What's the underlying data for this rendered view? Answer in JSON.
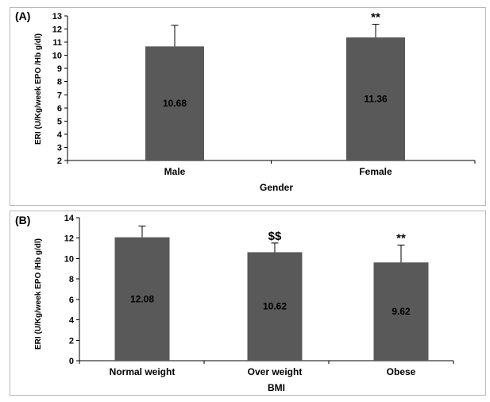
{
  "chart_data": [
    {
      "type": "bar",
      "panel_label": "(A)",
      "categories": [
        "Male",
        "Female"
      ],
      "values": [
        10.68,
        11.36
      ],
      "error": [
        1.6,
        1.0
      ],
      "data_labels": [
        "10.68",
        "11.36"
      ],
      "significance": [
        "",
        "**"
      ],
      "xlabel": "Gender",
      "ylabel": "ERI (U/Kg/week EPO /Hb g/dl)",
      "ylim": [
        2,
        13
      ],
      "yticks": [
        2,
        3,
        4,
        5,
        6,
        7,
        8,
        9,
        10,
        11,
        12,
        13
      ],
      "grid": false,
      "legend": "none",
      "bar_color": "#595959"
    },
    {
      "type": "bar",
      "panel_label": "(B)",
      "categories": [
        "Normal weight",
        "Over weight",
        "Obese"
      ],
      "values": [
        12.08,
        10.62,
        9.62
      ],
      "error": [
        1.1,
        0.9,
        1.7
      ],
      "data_labels": [
        "12.08",
        "10.62",
        "9.62"
      ],
      "significance": [
        "",
        "$$",
        "**"
      ],
      "xlabel": "BMI",
      "ylabel": "ERI (U/Kg/week EPO /Hb g/dl)",
      "ylim": [
        0,
        14
      ],
      "yticks": [
        0,
        2,
        4,
        6,
        8,
        10,
        12,
        14
      ],
      "grid": false,
      "legend": "none",
      "bar_color": "#595959"
    }
  ]
}
